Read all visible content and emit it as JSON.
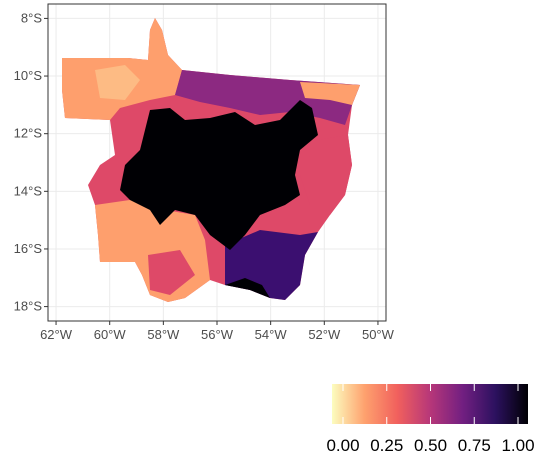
{
  "map": {
    "x_axis": {
      "ticks": [
        "62°W",
        "60°W",
        "58°W",
        "56°W",
        "54°W",
        "52°W",
        "50°W"
      ],
      "values": [
        -62,
        -60,
        -58,
        -56,
        -54,
        -52,
        -50
      ],
      "range": [
        -62.3,
        -49.7
      ]
    },
    "y_axis": {
      "ticks": [
        "8°S",
        "10°S",
        "12°S",
        "14°S",
        "16°S",
        "18°S"
      ],
      "values": [
        -8,
        -10,
        -12,
        -14,
        -16,
        -18
      ],
      "range": [
        -18.5,
        -7.5
      ]
    },
    "grid": true,
    "fill_scale": "magma (reversed)",
    "colors": {
      "panel_border": "#333333",
      "gridline": "#ebebeb",
      "core_region": "#000004",
      "high_region": "#3b0f70",
      "mid_region": "#8c2981",
      "midlow_region": "#de4968",
      "low_region": "#fe9f6d",
      "lowest_region": "#fcfdbf"
    }
  },
  "legend": {
    "position": "bottom-right",
    "labels": [
      "0.00",
      "0.25",
      "0.50",
      "0.75",
      "1.00"
    ],
    "values": [
      0,
      0.25,
      0.5,
      0.75,
      1.0
    ],
    "stops": [
      "#fcfdbf",
      "#fea16e",
      "#f1605d",
      "#b73779",
      "#721f81",
      "#2c115f",
      "#000004"
    ]
  }
}
